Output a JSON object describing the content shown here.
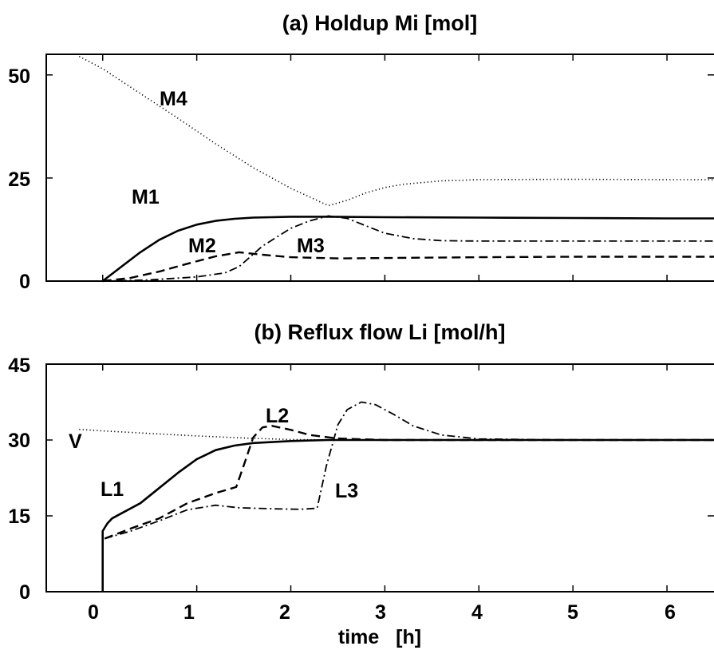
{
  "chart_data": [
    {
      "panel": "a",
      "type": "line",
      "title": "(a)   Holdup Mi [mol]",
      "xlim": [
        -0.6,
        6.5
      ],
      "ylim": [
        0,
        55
      ],
      "yticks": [
        0,
        25,
        50
      ],
      "ytick_labels": [
        "0",
        "25",
        "50"
      ],
      "xticks": [
        0,
        1,
        2,
        3,
        4,
        5,
        6
      ],
      "grid": false,
      "series": [
        {
          "name": "M1",
          "style": "solid",
          "x": [
            0,
            0.2,
            0.4,
            0.6,
            0.8,
            1.0,
            1.2,
            1.4,
            1.6,
            1.8,
            2.0,
            2.4,
            3.0,
            4.0,
            5.0,
            6.0,
            6.5
          ],
          "y": [
            0,
            3.5,
            7,
            10,
            12.2,
            13.7,
            14.6,
            15.1,
            15.4,
            15.5,
            15.6,
            15.6,
            15.5,
            15.4,
            15.3,
            15.2,
            15.2
          ]
        },
        {
          "name": "M2",
          "style": "dashed",
          "x": [
            0,
            0.3,
            0.6,
            0.9,
            1.2,
            1.45,
            1.7,
            2.0,
            2.5,
            3.0,
            4.0,
            5.0,
            6.5
          ],
          "y": [
            0,
            0.8,
            2.3,
            4.2,
            6.0,
            7.0,
            6.4,
            5.8,
            5.5,
            5.6,
            5.8,
            5.9,
            5.9
          ]
        },
        {
          "name": "M3",
          "style": "dashdot",
          "x": [
            0,
            0.5,
            1.0,
            1.3,
            1.45,
            1.7,
            2.0,
            2.2,
            2.4,
            2.6,
            2.8,
            3.0,
            3.3,
            3.6,
            4.0,
            5.0,
            6.5
          ],
          "y": [
            0,
            0.3,
            1.0,
            2.0,
            3.5,
            8.5,
            12.8,
            14.6,
            15.8,
            15.2,
            13.4,
            11.6,
            10.3,
            9.8,
            9.7,
            9.7,
            9.7
          ]
        },
        {
          "name": "M4",
          "style": "dotted",
          "x": [
            -0.25,
            0,
            0.4,
            0.8,
            1.2,
            1.6,
            2.0,
            2.4,
            2.6,
            2.8,
            3.0,
            3.2,
            3.6,
            4.0,
            5.0,
            6.0,
            6.5
          ],
          "y": [
            54.5,
            51.5,
            45.5,
            39.5,
            33.3,
            27.5,
            22.5,
            18.3,
            19.6,
            21.4,
            22.7,
            23.5,
            24.3,
            24.6,
            24.7,
            24.6,
            24.6
          ]
        }
      ]
    },
    {
      "panel": "b",
      "type": "line",
      "title": "(b)   Reflux flow Li [mol/h]",
      "xlim": [
        -0.6,
        6.5
      ],
      "ylim": [
        0,
        45
      ],
      "yticks": [
        0,
        15,
        30,
        45
      ],
      "ytick_labels": [
        "0",
        "15",
        "30",
        "45"
      ],
      "xticks": [
        0,
        1,
        2,
        3,
        4,
        5,
        6
      ],
      "xtick_labels": [
        "0",
        "1",
        "2",
        "3",
        "4",
        "5",
        "6"
      ],
      "xlabel": "time   [h]",
      "grid": false,
      "series": [
        {
          "name": "L1",
          "style": "solid",
          "x": [
            0,
            0,
            0.05,
            0.1,
            0.2,
            0.4,
            0.6,
            0.8,
            1.0,
            1.2,
            1.4,
            1.6,
            2.0,
            2.4,
            3.0,
            4.0,
            5.0,
            6.5
          ],
          "y": [
            0,
            12,
            13.5,
            14.5,
            15.5,
            17.5,
            20.5,
            23.5,
            26.2,
            28.0,
            28.9,
            29.4,
            29.8,
            30.0,
            30.0,
            30.0,
            30.0,
            30.0
          ]
        },
        {
          "name": "L2",
          "style": "dashed",
          "x": [
            0.02,
            0.3,
            0.6,
            0.9,
            1.2,
            1.42,
            1.5,
            1.6,
            1.7,
            1.8,
            2.0,
            2.2,
            2.5,
            3.0,
            4.0,
            5.0,
            6.5
          ],
          "y": [
            10.5,
            12.5,
            14.5,
            17.5,
            19.5,
            20.7,
            25.0,
            30.5,
            32.5,
            32.8,
            32.0,
            31.0,
            30.3,
            30.0,
            30.0,
            30.0,
            30.0
          ]
        },
        {
          "name": "L3",
          "style": "dashdot",
          "x": [
            0.02,
            0.3,
            0.6,
            0.9,
            1.2,
            1.45,
            1.8,
            2.1,
            2.28,
            2.38,
            2.5,
            2.6,
            2.75,
            2.9,
            3.1,
            3.3,
            3.6,
            4.0,
            5.0,
            6.5
          ],
          "y": [
            10.5,
            12.0,
            14.0,
            16.2,
            17.1,
            16.6,
            16.4,
            16.3,
            16.5,
            25.0,
            33.0,
            36.0,
            37.5,
            37.0,
            35.0,
            32.8,
            31.0,
            30.2,
            30.0,
            30.0
          ]
        },
        {
          "name": "V",
          "style": "dotted",
          "x": [
            -0.25,
            0,
            0.5,
            1.0,
            1.5,
            2.0,
            2.5,
            3.0,
            4.0,
            5.0,
            6.5
          ],
          "y": [
            32.1,
            31.8,
            31.3,
            30.8,
            30.4,
            30.1,
            30.0,
            30.0,
            30.0,
            30.0,
            30.0
          ]
        }
      ]
    }
  ]
}
